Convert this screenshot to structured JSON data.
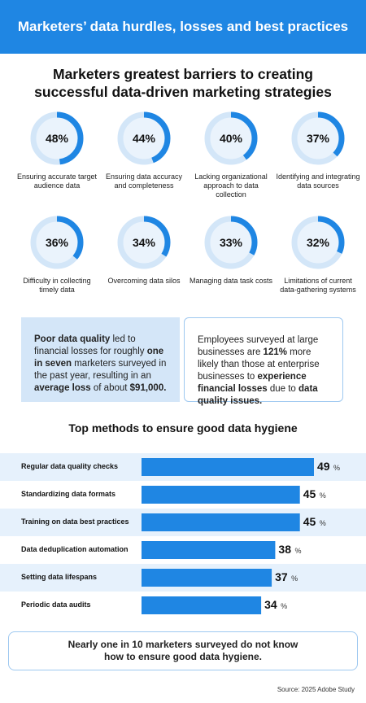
{
  "header": {
    "title": "Marketers’ data hurdles, losses and best practices"
  },
  "chart_data": [
    {
      "type": "donut",
      "title": "Marketers greatest barriers to creating successful data-driven marketing strategies",
      "categories": [
        "Ensuring accurate target audience data",
        "Ensuring data accuracy and completeness",
        "Lacking organizational approach to data collection",
        "Identifying and integrating data sources",
        "Difficulty in collecting timely data",
        "Overcoming data silos",
        "Managing data task costs",
        "Limitations of current data-gathering systems"
      ],
      "values": [
        48,
        44,
        40,
        37,
        36,
        34,
        33,
        32
      ],
      "value_labels": [
        "48%",
        "44%",
        "40%",
        "37%",
        "36%",
        "34%",
        "33%",
        "32%"
      ],
      "color": "#1f86e3",
      "track_color": "#d3e6f8"
    },
    {
      "type": "bar",
      "orientation": "horizontal",
      "title": "Top methods to ensure good data hygiene",
      "categories": [
        "Regular data quality checks",
        "Standardizing data formats",
        "Training on data best practices",
        "Data deduplication automation",
        "Setting data lifespans",
        "Periodic data audits"
      ],
      "values": [
        49,
        45,
        45,
        38,
        37,
        34
      ],
      "unit": "%",
      "color": "#1f86e3",
      "band_color": "#e6f1fc"
    }
  ],
  "callouts": [
    {
      "segments": [
        {
          "text": "Poor data quality",
          "bold": true
        },
        {
          "text": " led to financial losses for roughly ",
          "bold": false
        },
        {
          "text": "one in seven",
          "bold": true
        },
        {
          "text": " marketers surveyed in the past year, resulting in an ",
          "bold": false
        },
        {
          "text": "average loss",
          "bold": true
        },
        {
          "text": " of about ",
          "bold": false
        },
        {
          "text": "$91,000.",
          "bold": true
        }
      ]
    },
    {
      "segments": [
        {
          "text": "Employees surveyed at large businesses are ",
          "bold": false
        },
        {
          "text": "121%",
          "bold": true
        },
        {
          "text": " more likely than those at enterprise businesses to ",
          "bold": false
        },
        {
          "text": "experience financial losses",
          "bold": true
        },
        {
          "text": " due to ",
          "bold": false
        },
        {
          "text": "data quality issues.",
          "bold": true
        }
      ]
    }
  ],
  "note": {
    "segments": [
      {
        "text": "Nearly one in 10 marketers surveyed ",
        "bold": false
      },
      {
        "text": "do not know",
        "bold": true
      },
      {
        "text": " how to ensure ",
        "bold": false
      },
      {
        "text": "good data hygiene.",
        "bold": true
      }
    ]
  },
  "source": "Source: 2025 Adobe Study"
}
